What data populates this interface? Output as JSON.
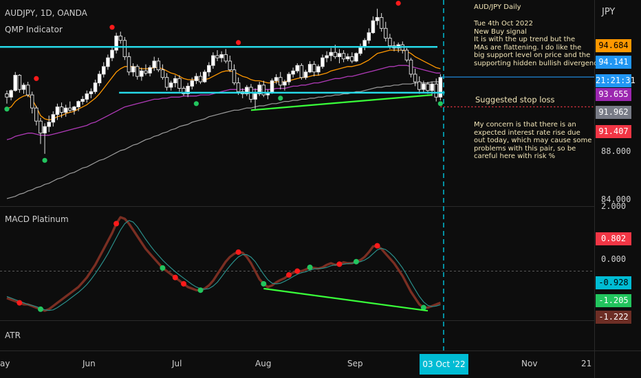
{
  "header": {
    "symbol": "AUDJPY, 1D, OANDA",
    "indicator": "QMP Indicator",
    "macd_label": "MACD Platinum",
    "atr_label": "ATR",
    "currency": "JPY"
  },
  "notes": {
    "title": "AUD/JPY Daily",
    "body": "Tue 4th Oct 2022\nNew Buy signal\nIt is with the up trend but the\nMAs are flattening. I do like the\nbig support level on price and the\nsupporting hidden bullish divergence",
    "stop_loss": "Suggested stop loss",
    "concern": "My concern is that there is an\nexpected interest rate rise due\nout today, which may cause some\nproblems with this pair, so be\ncareful here with risk %"
  },
  "price_axis": {
    "ticks": [
      "88.000",
      "84.000"
    ],
    "badges": [
      {
        "value": "94.684",
        "color": "#ff9800",
        "text_color": "#000000"
      },
      {
        "value": "94.141",
        "color": "#2196f3",
        "text_color": "#ffffff"
      },
      {
        "value": "21:21:31",
        "color": "#2196f3",
        "text_color": "#ffffff"
      },
      {
        "value": "93.655",
        "color": "#9c27b0",
        "text_color": "#ffffff"
      },
      {
        "value": "91.962",
        "color": "#787b86",
        "text_color": "#ffffff"
      },
      {
        "value": "91.407",
        "color": "#f23645",
        "text_color": "#ffffff"
      }
    ]
  },
  "macd_axis": {
    "ticks": [
      "2.000",
      "0.000"
    ],
    "badges": [
      {
        "value": "0.802",
        "color": "#f23645",
        "text_color": "#ffffff"
      },
      {
        "value": "-0.928",
        "color": "#00bcd4",
        "text_color": "#000000"
      },
      {
        "value": "-1.205",
        "color": "#22c55e",
        "text_color": "#ffffff"
      },
      {
        "value": "-1.222",
        "color": "#6d2e25",
        "text_color": "#ffffff"
      }
    ]
  },
  "time_axis": {
    "labels": [
      "ay",
      "Jun",
      "Jul",
      "Aug",
      "Sep",
      "Nov",
      "21"
    ],
    "highlight": "03 Oct '22"
  },
  "chart_data": {
    "type": "candlestick",
    "candles": [
      [
        92.6,
        92.9,
        91.7,
        92.3
      ],
      [
        92.3,
        93.0,
        92.0,
        92.9
      ],
      [
        92.9,
        94.6,
        92.8,
        94.3
      ],
      [
        94.3,
        94.4,
        92.7,
        93.0
      ],
      [
        93.0,
        93.6,
        92.6,
        93.4
      ],
      [
        93.4,
        93.7,
        92.3,
        92.5
      ],
      [
        92.5,
        92.8,
        90.8,
        91.3
      ],
      [
        91.3,
        91.5,
        89.7,
        90.1
      ],
      [
        90.1,
        90.4,
        88.0,
        89.0
      ],
      [
        89.0,
        89.9,
        87.1,
        89.6
      ],
      [
        89.6,
        90.6,
        89.1,
        90.0
      ],
      [
        90.0,
        91.0,
        89.6,
        90.7
      ],
      [
        90.7,
        91.7,
        90.2,
        91.4
      ],
      [
        91.4,
        91.8,
        90.4,
        90.9
      ],
      [
        90.9,
        91.6,
        90.5,
        91.3
      ],
      [
        91.3,
        91.9,
        90.9,
        91.1
      ],
      [
        91.1,
        91.5,
        90.7,
        91.4
      ],
      [
        91.4,
        92.0,
        91.0,
        91.9
      ],
      [
        91.9,
        92.4,
        91.6,
        92.1
      ],
      [
        92.1,
        92.9,
        91.8,
        92.6
      ],
      [
        92.6,
        93.1,
        92.2,
        92.8
      ],
      [
        92.8,
        93.9,
        92.6,
        93.6
      ],
      [
        93.6,
        94.7,
        93.3,
        94.4
      ],
      [
        94.4,
        95.5,
        94.1,
        95.1
      ],
      [
        95.1,
        96.2,
        94.8,
        95.9
      ],
      [
        95.9,
        96.9,
        95.6,
        96.6
      ],
      [
        96.6,
        98.2,
        96.3,
        97.9
      ],
      [
        97.9,
        98.3,
        97.2,
        97.5
      ],
      [
        97.5,
        97.8,
        95.7,
        96.0
      ],
      [
        96.0,
        96.4,
        94.3,
        94.6
      ],
      [
        94.6,
        95.4,
        94.2,
        95.1
      ],
      [
        95.1,
        95.3,
        93.9,
        94.2
      ],
      [
        94.2,
        95.0,
        93.8,
        94.7
      ],
      [
        94.7,
        95.3,
        94.3,
        94.5
      ],
      [
        94.5,
        95.2,
        94.2,
        95.0
      ],
      [
        95.0,
        96.0,
        94.7,
        95.6
      ],
      [
        95.6,
        95.9,
        94.6,
        94.8
      ],
      [
        94.8,
        95.3,
        93.9,
        94.1
      ],
      [
        94.1,
        94.5,
        92.9,
        93.2
      ],
      [
        93.2,
        93.8,
        92.9,
        93.6
      ],
      [
        93.6,
        94.3,
        93.2,
        94.0
      ],
      [
        94.0,
        94.3,
        92.8,
        93.1
      ],
      [
        93.1,
        93.3,
        92.4,
        92.6
      ],
      [
        92.6,
        93.6,
        92.3,
        93.3
      ],
      [
        93.3,
        94.1,
        93.0,
        93.8
      ],
      [
        93.8,
        94.5,
        93.5,
        94.2
      ],
      [
        94.2,
        94.6,
        93.5,
        93.7
      ],
      [
        93.7,
        94.8,
        93.6,
        94.6
      ],
      [
        94.6,
        95.5,
        94.2,
        95.2
      ],
      [
        95.2,
        96.4,
        94.9,
        96.1
      ],
      [
        96.1,
        96.6,
        95.6,
        95.9
      ],
      [
        95.9,
        96.5,
        95.5,
        96.2
      ],
      [
        96.2,
        96.7,
        95.4,
        95.6
      ],
      [
        95.6,
        96.1,
        94.6,
        94.8
      ],
      [
        94.8,
        95.3,
        93.4,
        93.6
      ],
      [
        93.6,
        94.1,
        92.5,
        92.8
      ],
      [
        92.8,
        93.1,
        92.2,
        92.6
      ],
      [
        92.6,
        93.4,
        92.4,
        93.2
      ],
      [
        93.2,
        93.5,
        91.8,
        92.1
      ],
      [
        92.1,
        93.1,
        91.2,
        92.6
      ],
      [
        92.6,
        93.7,
        92.4,
        93.4
      ],
      [
        93.4,
        93.8,
        92.3,
        92.5
      ],
      [
        92.5,
        93.0,
        92.1,
        92.7
      ],
      [
        92.7,
        94.0,
        92.6,
        93.8
      ],
      [
        93.8,
        94.4,
        93.5,
        94.1
      ],
      [
        94.1,
        94.6,
        93.0,
        93.4
      ],
      [
        93.4,
        93.9,
        92.9,
        93.7
      ],
      [
        93.7,
        94.6,
        93.4,
        94.4
      ],
      [
        94.4,
        95.0,
        94.1,
        94.7
      ],
      [
        94.7,
        95.4,
        94.5,
        95.2
      ],
      [
        95.2,
        95.4,
        93.9,
        94.1
      ],
      [
        94.1,
        94.8,
        93.9,
        94.6
      ],
      [
        94.6,
        95.6,
        94.5,
        95.3
      ],
      [
        95.3,
        95.6,
        94.2,
        94.6
      ],
      [
        94.6,
        95.3,
        94.3,
        95.1
      ],
      [
        95.1,
        96.2,
        94.9,
        95.9
      ],
      [
        95.9,
        96.5,
        95.5,
        96.1
      ],
      [
        96.1,
        96.8,
        95.6,
        96.4
      ],
      [
        96.4,
        97.1,
        95.8,
        96.0
      ],
      [
        96.0,
        96.7,
        95.4,
        96.3
      ],
      [
        96.3,
        96.6,
        95.5,
        95.8
      ],
      [
        95.8,
        96.3,
        95.6,
        96.0
      ],
      [
        96.0,
        96.4,
        95.4,
        95.6
      ],
      [
        95.6,
        96.4,
        95.5,
        96.3
      ],
      [
        96.3,
        97.2,
        96.1,
        96.9
      ],
      [
        96.9,
        97.7,
        96.6,
        97.5
      ],
      [
        97.5,
        98.6,
        97.2,
        98.2
      ],
      [
        98.2,
        99.7,
        98.1,
        99.3
      ],
      [
        99.3,
        100.4,
        98.9,
        99.6
      ],
      [
        99.6,
        100.0,
        98.3,
        98.6
      ],
      [
        98.6,
        99.2,
        97.4,
        97.7
      ],
      [
        97.7,
        98.1,
        96.7,
        97.0
      ],
      [
        97.0,
        97.4,
        96.5,
        96.8
      ],
      [
        96.8,
        97.3,
        96.4,
        97.1
      ],
      [
        97.1,
        97.4,
        96.3,
        96.6
      ],
      [
        96.6,
        96.8,
        95.5,
        95.7
      ],
      [
        95.7,
        95.9,
        94.1,
        94.4
      ],
      [
        94.4,
        94.9,
        93.3,
        93.7
      ],
      [
        93.7,
        94.2,
        92.6,
        93.0
      ],
      [
        93.0,
        93.8,
        92.7,
        93.5
      ],
      [
        93.5,
        93.7,
        92.6,
        92.9
      ],
      [
        92.9,
        93.7,
        92.4,
        93.5
      ],
      [
        93.5,
        94.0,
        91.9,
        92.3
      ],
      [
        92.3,
        94.4,
        92.0,
        94.1
      ]
    ],
    "price_range": [
      82.3,
      101.2
    ],
    "levels": {
      "resistance": 96.9,
      "support": 92.7,
      "stop_loss": 91.407,
      "last": 94.141
    },
    "ema_fast": [
      91.2,
      91.4,
      91.9,
      92.2,
      92.4,
      92.5,
      92.1,
      91.4,
      90.6,
      90.3,
      90.2,
      90.3,
      90.5,
      90.6,
      90.8,
      90.9,
      91.0,
      91.2,
      91.4,
      91.6,
      91.9,
      92.2,
      92.6,
      93.1,
      93.6,
      94.1,
      94.6,
      94.9,
      95.1,
      95.1,
      95.1,
      95.0,
      94.9,
      94.9,
      94.9,
      95.0,
      95.0,
      94.9,
      94.7,
      94.5,
      94.4,
      94.2,
      94.0,
      93.9,
      93.9,
      93.9,
      93.9,
      93.9,
      94.0,
      94.2,
      94.4,
      94.6,
      94.7,
      94.7,
      94.6,
      94.4,
      94.2,
      94.1,
      93.9,
      93.8,
      93.8,
      93.7,
      93.6,
      93.6,
      93.7,
      93.7,
      93.7,
      93.8,
      93.9,
      94.0,
      94.1,
      94.1,
      94.2,
      94.3,
      94.3,
      94.4,
      94.5,
      94.7,
      94.8,
      94.9,
      95.0,
      95.1,
      95.1,
      95.2,
      95.3,
      95.5,
      95.7,
      96.0,
      96.3,
      96.4,
      96.5,
      96.6,
      96.6,
      96.6,
      96.6,
      96.5,
      96.3,
      96.0,
      95.8,
      95.6,
      95.4,
      95.2,
      95.0,
      94.9
    ],
    "ema_mid": [
      88.4,
      88.5,
      88.7,
      88.8,
      88.9,
      89.0,
      89.0,
      88.9,
      88.8,
      88.8,
      88.8,
      88.9,
      89.0,
      89.1,
      89.2,
      89.3,
      89.4,
      89.5,
      89.6,
      89.7,
      89.9,
      90.0,
      90.2,
      90.4,
      90.6,
      90.8,
      91.0,
      91.2,
      91.4,
      91.5,
      91.6,
      91.7,
      91.8,
      91.9,
      92.0,
      92.1,
      92.1,
      92.2,
      92.2,
      92.3,
      92.3,
      92.3,
      92.4,
      92.4,
      92.4,
      92.4,
      92.5,
      92.5,
      92.5,
      92.6,
      92.7,
      92.8,
      92.9,
      93.0,
      93.0,
      93.0,
      93.0,
      93.0,
      93.0,
      93.0,
      93.0,
      93.0,
      93.0,
      93.0,
      93.1,
      93.1,
      93.1,
      93.2,
      93.3,
      93.3,
      93.4,
      93.4,
      93.5,
      93.6,
      93.6,
      93.7,
      93.8,
      93.9,
      94.0,
      94.0,
      94.1,
      94.2,
      94.2,
      94.3,
      94.4,
      94.5,
      94.6,
      94.7,
      94.8,
      94.9,
      95.0,
      95.1,
      95.1,
      95.2,
      95.2,
      95.2,
      95.1,
      95.0,
      94.9,
      94.8,
      94.7,
      94.6,
      94.5,
      94.5
    ],
    "ema_slow": [
      83.0,
      83.1,
      83.2,
      83.4,
      83.5,
      83.7,
      83.8,
      84.0,
      84.1,
      84.3,
      84.4,
      84.6,
      84.8,
      84.9,
      85.1,
      85.3,
      85.4,
      85.6,
      85.8,
      85.9,
      86.1,
      86.3,
      86.5,
      86.6,
      86.8,
      87.0,
      87.2,
      87.4,
      87.5,
      87.7,
      87.9,
      88.0,
      88.2,
      88.4,
      88.5,
      88.7,
      88.8,
      89.0,
      89.1,
      89.3,
      89.4,
      89.6,
      89.7,
      89.8,
      90.0,
      90.1,
      90.2,
      90.3,
      90.5,
      90.6,
      90.7,
      90.8,
      90.9,
      91.0,
      91.1,
      91.1,
      91.2,
      91.3,
      91.3,
      91.4,
      91.5,
      91.5,
      91.6,
      91.7,
      91.7,
      91.8,
      91.9,
      91.9,
      92.0,
      92.0,
      92.1,
      92.1,
      92.2,
      92.2,
      92.3,
      92.3,
      92.4,
      92.4,
      92.5,
      92.5,
      92.6,
      92.6,
      92.7,
      92.8,
      92.8,
      92.9,
      93.0,
      93.1,
      93.2,
      93.2,
      93.3,
      93.3,
      93.4,
      93.4,
      93.5,
      93.5,
      93.5,
      93.6,
      93.6,
      93.6,
      93.6,
      93.7,
      93.7,
      93.7
    ],
    "qmp_signals": [
      {
        "candle": 0,
        "side": "buy",
        "price": 91.2
      },
      {
        "candle": 7,
        "side": "sell",
        "price": 94.0
      },
      {
        "candle": 9,
        "side": "buy",
        "price": 86.5
      },
      {
        "candle": 25,
        "side": "sell",
        "price": 98.7
      },
      {
        "candle": 45,
        "side": "buy",
        "price": 91.7
      },
      {
        "candle": 55,
        "side": "sell",
        "price": 97.3
      },
      {
        "candle": 65,
        "side": "buy",
        "price": 92.2
      },
      {
        "candle": 93,
        "side": "sell",
        "price": 100.9
      },
      {
        "candle": 103,
        "side": "buy",
        "price": 91.7
      }
    ],
    "divergence_price": {
      "from": {
        "candle": 58,
        "price": 91.1
      },
      "to": {
        "candle": 101,
        "price": 92.5
      }
    },
    "macd": {
      "range": [
        -1.55,
        2.05
      ],
      "line": [
        -0.85,
        -0.9,
        -0.95,
        -1.0,
        -1.05,
        -1.05,
        -1.1,
        -1.15,
        -1.2,
        -1.25,
        -1.2,
        -1.1,
        -1.0,
        -0.9,
        -0.8,
        -0.7,
        -0.6,
        -0.5,
        -0.35,
        -0.2,
        0.0,
        0.2,
        0.45,
        0.7,
        0.95,
        1.2,
        1.5,
        1.7,
        1.65,
        1.5,
        1.3,
        1.1,
        0.9,
        0.7,
        0.55,
        0.4,
        0.25,
        0.1,
        0.0,
        -0.1,
        -0.2,
        -0.3,
        -0.4,
        -0.5,
        -0.55,
        -0.6,
        -0.6,
        -0.55,
        -0.45,
        -0.3,
        -0.1,
        0.1,
        0.3,
        0.45,
        0.55,
        0.6,
        0.58,
        0.45,
        0.25,
        0.0,
        -0.25,
        -0.4,
        -0.5,
        -0.45,
        -0.35,
        -0.28,
        -0.22,
        -0.12,
        -0.05,
        0.0,
        0.0,
        0.05,
        0.12,
        0.1,
        0.08,
        0.12,
        0.2,
        0.25,
        0.2,
        0.22,
        0.28,
        0.25,
        0.25,
        0.3,
        0.35,
        0.45,
        0.6,
        0.78,
        0.8,
        0.7,
        0.55,
        0.4,
        0.25,
        0.05,
        -0.15,
        -0.4,
        -0.65,
        -0.85,
        -1.05,
        -1.15,
        -1.15,
        -1.1,
        -1.05,
        -1.0
      ],
      "signal": [
        -0.8,
        -0.85,
        -0.9,
        -0.95,
        -1.0,
        -1.05,
        -1.08,
        -1.12,
        -1.17,
        -1.22,
        -1.24,
        -1.22,
        -1.15,
        -1.06,
        -0.97,
        -0.87,
        -0.77,
        -0.67,
        -0.55,
        -0.42,
        -0.26,
        -0.08,
        0.12,
        0.33,
        0.55,
        0.8,
        1.05,
        1.3,
        1.5,
        1.6,
        1.55,
        1.4,
        1.2,
        1.0,
        0.82,
        0.65,
        0.5,
        0.35,
        0.22,
        0.1,
        -0.02,
        -0.12,
        -0.22,
        -0.32,
        -0.42,
        -0.5,
        -0.55,
        -0.57,
        -0.55,
        -0.47,
        -0.35,
        -0.18,
        0.0,
        0.17,
        0.32,
        0.45,
        0.52,
        0.52,
        0.44,
        0.3,
        0.1,
        -0.1,
        -0.27,
        -0.38,
        -0.4,
        -0.38,
        -0.32,
        -0.25,
        -0.17,
        -0.1,
        -0.05,
        -0.02,
        0.03,
        0.07,
        0.08,
        0.09,
        0.12,
        0.17,
        0.2,
        0.2,
        0.22,
        0.24,
        0.25,
        0.27,
        0.3,
        0.35,
        0.43,
        0.55,
        0.67,
        0.72,
        0.68,
        0.58,
        0.45,
        0.28,
        0.1,
        -0.12,
        -0.36,
        -0.58,
        -0.8,
        -0.97,
        -1.08,
        -1.12,
        -1.1,
        -1.06
      ],
      "dots": [
        {
          "index": 3,
          "color": "red"
        },
        {
          "index": 8,
          "color": "green"
        },
        {
          "index": 26,
          "color": "red"
        },
        {
          "index": 37,
          "color": "green"
        },
        {
          "index": 40,
          "color": "red"
        },
        {
          "index": 42,
          "color": "red"
        },
        {
          "index": 46,
          "color": "green"
        },
        {
          "index": 55,
          "color": "red"
        },
        {
          "index": 61,
          "color": "green"
        },
        {
          "index": 67,
          "color": "red"
        },
        {
          "index": 69,
          "color": "red"
        },
        {
          "index": 72,
          "color": "green"
        },
        {
          "index": 79,
          "color": "red"
        },
        {
          "index": 83,
          "color": "green"
        },
        {
          "index": 88,
          "color": "red"
        },
        {
          "index": 99,
          "color": "green"
        }
      ],
      "divergence": {
        "from": {
          "index": 61,
          "value": -0.55
        },
        "to": {
          "index": 100,
          "value": -1.25
        }
      }
    }
  }
}
